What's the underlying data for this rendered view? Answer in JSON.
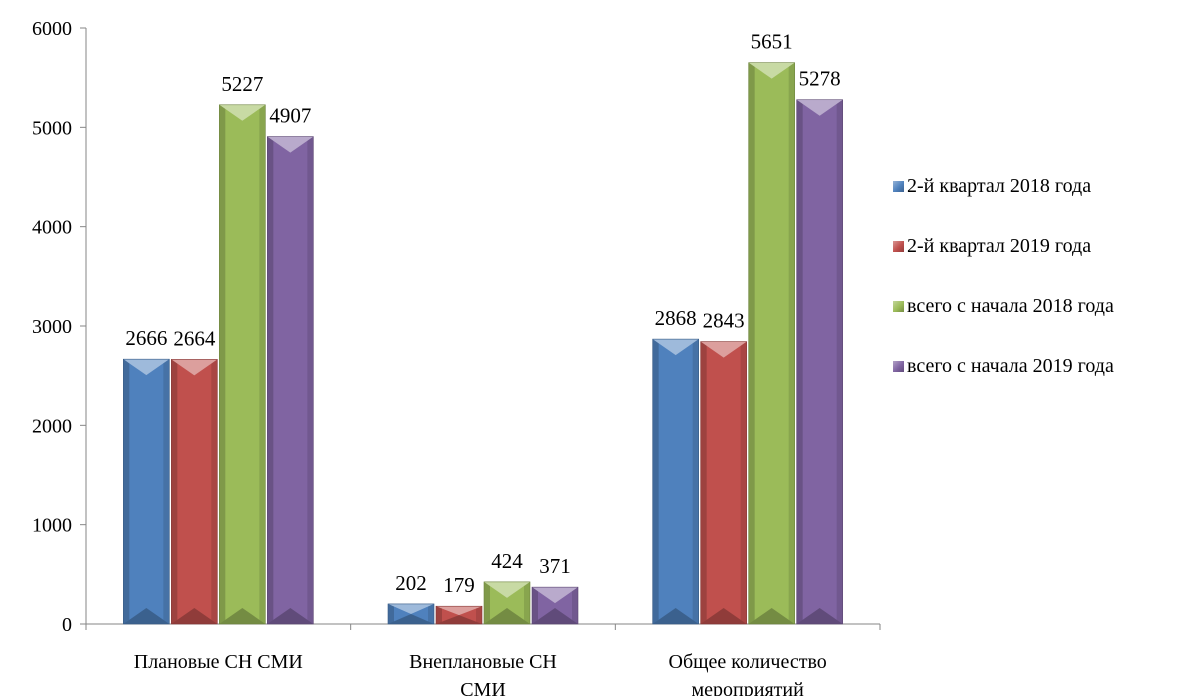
{
  "chart_data": {
    "type": "bar",
    "title": "",
    "xlabel": "",
    "ylabel": "",
    "ylim": [
      0,
      6000
    ],
    "yticks": [
      0,
      1000,
      2000,
      3000,
      4000,
      5000,
      6000
    ],
    "categories": [
      [
        "Плановые СН СМИ"
      ],
      [
        "Внеплановые СН",
        "СМИ"
      ],
      [
        "Общее количество",
        "мероприятий"
      ]
    ],
    "series": [
      {
        "name": "2-й квартал 2018 года",
        "color": "#4f81bd",
        "values": [
          2666,
          202,
          2868
        ]
      },
      {
        "name": "2-й квартал 2019 года",
        "color": "#c0504d",
        "values": [
          2664,
          179,
          2843
        ]
      },
      {
        "name": "всего с начала  2018 года",
        "color": "#9bbb59",
        "values": [
          5227,
          424,
          5651
        ]
      },
      {
        "name": "всего с начала 2019 года",
        "color": "#8064a2",
        "values": [
          4907,
          371,
          5278
        ]
      }
    ],
    "grid": false,
    "legend_position": "right"
  }
}
